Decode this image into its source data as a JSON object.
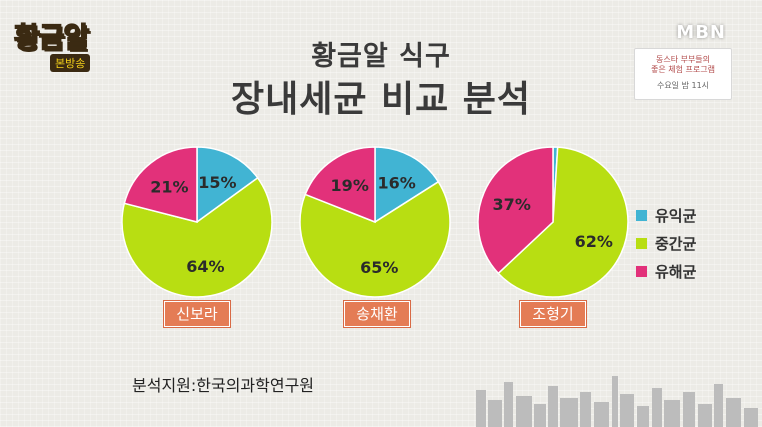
{
  "header": {
    "logo_main": "황금알",
    "logo_sub": "본방송",
    "channel": "MBN",
    "promo_line1": "동스타 부부들의",
    "promo_line2": "좋은 체험 프로그램",
    "promo_line3": "수요일 밤 11시"
  },
  "title_line1": "황금알 식구",
  "title_line2": "장내세균 비교 분석",
  "source": "분석지원:한국의과학연구원",
  "colors": {
    "beneficial": "#41b4d3",
    "intermediate": "#b8de12",
    "harmful": "#e2317a",
    "name_box": "#e47c55"
  },
  "chart_data": {
    "type": "pie",
    "legend": [
      "유익균",
      "중간균",
      "유해균"
    ],
    "legend_position": "right",
    "charts": [
      {
        "name": "신보라",
        "slices": [
          {
            "label": "유익균",
            "value": 15
          },
          {
            "label": "중간균",
            "value": 64
          },
          {
            "label": "유해균",
            "value": 21
          }
        ]
      },
      {
        "name": "송채환",
        "slices": [
          {
            "label": "유익균",
            "value": 16
          },
          {
            "label": "중간균",
            "value": 65
          },
          {
            "label": "유해균",
            "value": 19
          }
        ]
      },
      {
        "name": "조형기",
        "slices": [
          {
            "label": "유익균",
            "value": 1
          },
          {
            "label": "중간균",
            "value": 62
          },
          {
            "label": "유해균",
            "value": 37
          }
        ]
      }
    ]
  }
}
